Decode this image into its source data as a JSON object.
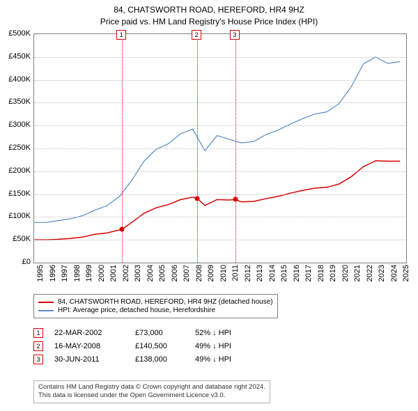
{
  "title": {
    "line1": "84, CHATSWORTH ROAD, HEREFORD, HR4 9HZ",
    "line2": "Price paid vs. HM Land Registry's House Price Index (HPI)",
    "fontsize": 12
  },
  "chart": {
    "type": "line",
    "background_color": "#ffffff",
    "border_color": "#808080",
    "grid_color": "#c0c0c0",
    "x_axis": {
      "min": 1995,
      "max": 2025.5,
      "ticks": [
        1995,
        1996,
        1997,
        1998,
        1999,
        2000,
        2001,
        2002,
        2003,
        2004,
        2005,
        2006,
        2007,
        2008,
        2009,
        2010,
        2011,
        2012,
        2013,
        2014,
        2015,
        2016,
        2017,
        2018,
        2019,
        2020,
        2021,
        2022,
        2023,
        2024,
        2025
      ],
      "label_fontsize": 11
    },
    "y_axis": {
      "min": 0,
      "max": 500000,
      "ticks": [
        0,
        50000,
        100000,
        150000,
        200000,
        250000,
        300000,
        350000,
        400000,
        450000,
        500000
      ],
      "tick_labels": [
        "£0",
        "£50K",
        "£100K",
        "£150K",
        "£200K",
        "£250K",
        "£300K",
        "£350K",
        "£400K",
        "£450K",
        "£500K"
      ],
      "label_fontsize": 11
    },
    "series": [
      {
        "id": "property",
        "label": "84, CHATSWORTH ROAD, HEREFORD, HR4 9HZ (detached house)",
        "color": "#d90000",
        "line_width": 1.5,
        "data": [
          [
            1995,
            50000
          ],
          [
            1996,
            50000
          ],
          [
            1997,
            51000
          ],
          [
            1998,
            53000
          ],
          [
            1999,
            56000
          ],
          [
            2000,
            62000
          ],
          [
            2001,
            65000
          ],
          [
            2002.22,
            73000
          ],
          [
            2003,
            88000
          ],
          [
            2004,
            108000
          ],
          [
            2005,
            120000
          ],
          [
            2006,
            127000
          ],
          [
            2007,
            138000
          ],
          [
            2008,
            143000
          ],
          [
            2008.37,
            140500
          ],
          [
            2009,
            125000
          ],
          [
            2010,
            138000
          ],
          [
            2011,
            137000
          ],
          [
            2011.5,
            138000
          ],
          [
            2012,
            133000
          ],
          [
            2013,
            134000
          ],
          [
            2014,
            140000
          ],
          [
            2015,
            145000
          ],
          [
            2016,
            152000
          ],
          [
            2017,
            158000
          ],
          [
            2018,
            163000
          ],
          [
            2019,
            165000
          ],
          [
            2020,
            172000
          ],
          [
            2021,
            188000
          ],
          [
            2022,
            210000
          ],
          [
            2023,
            223000
          ],
          [
            2024,
            222000
          ],
          [
            2025,
            222000
          ]
        ]
      },
      {
        "id": "hpi",
        "label": "HPI: Average price, detached house, Herefordshire",
        "color": "#5a8ac6",
        "line_width": 1.2,
        "data": [
          [
            1995,
            88000
          ],
          [
            1996,
            88000
          ],
          [
            1997,
            92000
          ],
          [
            1998,
            96000
          ],
          [
            1999,
            103000
          ],
          [
            2000,
            115000
          ],
          [
            2001,
            125000
          ],
          [
            2002,
            145000
          ],
          [
            2003,
            180000
          ],
          [
            2004,
            222000
          ],
          [
            2005,
            248000
          ],
          [
            2006,
            260000
          ],
          [
            2007,
            282000
          ],
          [
            2008,
            292000
          ],
          [
            2009,
            245000
          ],
          [
            2010,
            278000
          ],
          [
            2011,
            270000
          ],
          [
            2012,
            262000
          ],
          [
            2013,
            265000
          ],
          [
            2014,
            280000
          ],
          [
            2015,
            290000
          ],
          [
            2016,
            303000
          ],
          [
            2017,
            315000
          ],
          [
            2018,
            325000
          ],
          [
            2019,
            330000
          ],
          [
            2020,
            348000
          ],
          [
            2021,
            385000
          ],
          [
            2022,
            435000
          ],
          [
            2023,
            450000
          ],
          [
            2024,
            436000
          ],
          [
            2025,
            440000
          ]
        ]
      }
    ],
    "markers": [
      {
        "n": "1",
        "year": 2002.22,
        "y_box": 43,
        "vline_color": "#d90000",
        "box_border": "#d90000",
        "sale_value": 73000
      },
      {
        "n": "2",
        "year": 2008.37,
        "y_box": 43,
        "vline_color": "#d90000",
        "box_border": "#d90000",
        "sale_value": 140500
      },
      {
        "n": "3",
        "year": 2011.5,
        "y_box": 43,
        "vline_color": "#d90000",
        "box_border": "#d90000",
        "sale_value": 138000
      }
    ],
    "sale_dot_color": "#d90000"
  },
  "legend": {
    "border_color": "#808080",
    "fontsize": 10,
    "items": [
      {
        "color": "#d90000",
        "label": "84, CHATSWORTH ROAD, HEREFORD, HR4 9HZ (detached house)"
      },
      {
        "color": "#5a8ac6",
        "label": "HPI: Average price, detached house, Herefordshire"
      }
    ]
  },
  "sales": {
    "fontsize": 11,
    "box_border": "#d90000",
    "rows": [
      {
        "n": "1",
        "date": "22-MAR-2002",
        "price": "£73,000",
        "hpi": "52% ↓ HPI"
      },
      {
        "n": "2",
        "date": "16-MAY-2008",
        "price": "£140,500",
        "hpi": "49% ↓ HPI"
      },
      {
        "n": "3",
        "date": "30-JUN-2011",
        "price": "£138,000",
        "hpi": "49% ↓ HPI"
      }
    ]
  },
  "footer": {
    "line1": "Contains HM Land Registry data © Crown copyright and database right 2024.",
    "line2": "This data is licensed under the Open Government Licence v3.0.",
    "fontsize": 9.5,
    "border_color": "#b0b0b0",
    "color": "#303030"
  }
}
